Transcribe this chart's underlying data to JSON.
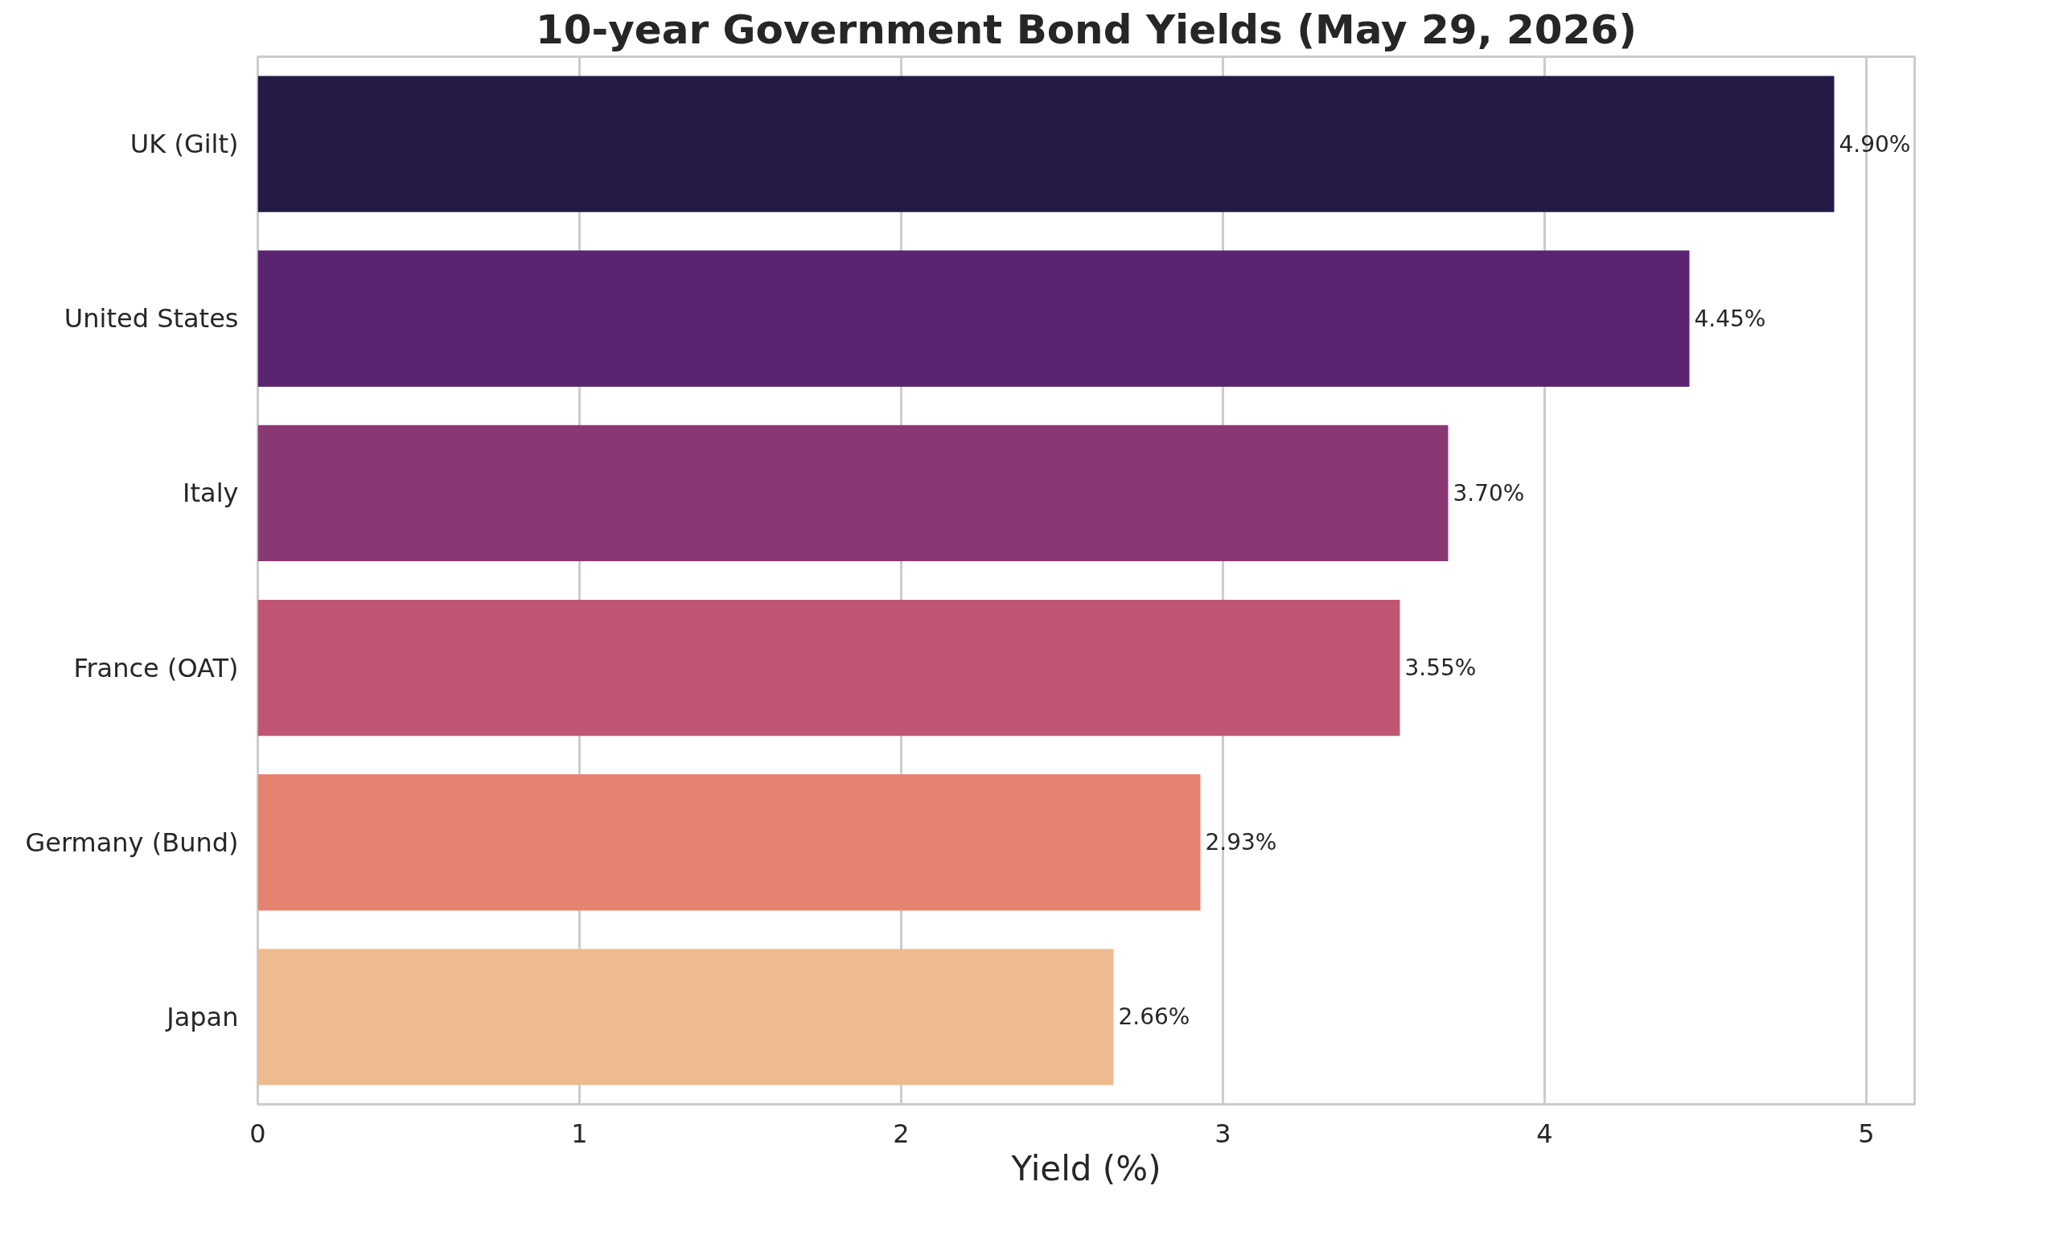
{
  "chart_data": {
    "type": "bar",
    "orientation": "horizontal",
    "title": "10-year Government Bond Yields (May 29, 2026)",
    "xlabel": "Yield (%)",
    "categories": [
      "UK (Gilt)",
      "United States",
      "Italy",
      "France (OAT)",
      "Germany (Bund)",
      "Japan"
    ],
    "values": [
      4.9,
      4.45,
      3.7,
      3.55,
      2.93,
      2.66
    ],
    "colors": [
      "#251a46",
      "#5b2470",
      "#8a3874",
      "#c05673",
      "#e68370",
      "#eeba8f"
    ],
    "value_labels": [
      "4.90%",
      "4.45%",
      "3.70%",
      "3.55%",
      "2.93%",
      "2.66%"
    ],
    "xlim": [
      0,
      5.15
    ],
    "xticks": [
      0,
      1,
      2,
      3,
      4,
      5
    ],
    "grid": "x"
  }
}
